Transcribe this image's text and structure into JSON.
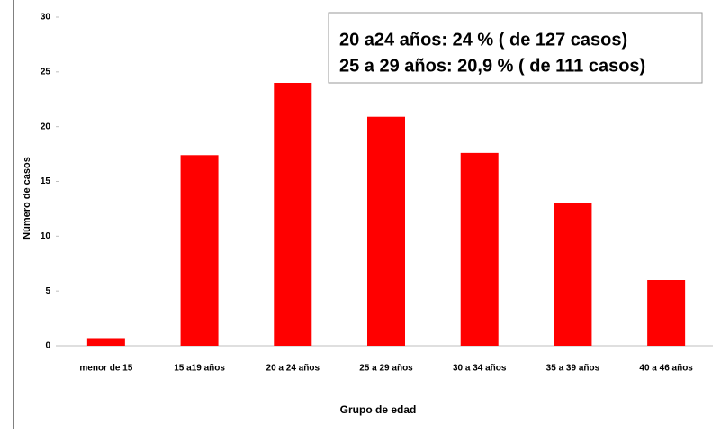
{
  "chart_data": {
    "type": "bar",
    "annotations": [
      "20 a24 años: 24 % ( de 127 casos)",
      "25 a 29 años: 20,9 % ( de 111 casos)"
    ],
    "x_label": "Grupo de edad",
    "y_label": "Número de casos",
    "categories": [
      "menor de 15",
      "15 a19 años",
      "20 a 24 años",
      "25 a 29 años",
      "30 a 34 años",
      "35 a 39 años",
      "40 a 46 años"
    ],
    "values": [
      0.7,
      17.4,
      24,
      20.9,
      17.6,
      13,
      6
    ],
    "color": "#ff0000",
    "ylim": [
      0,
      30
    ],
    "yticks": [
      0,
      5,
      10,
      15,
      20,
      25,
      30
    ],
    "grid": false
  }
}
